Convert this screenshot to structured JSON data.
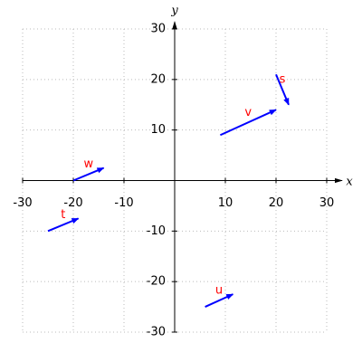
{
  "chart_data": {
    "type": "vector",
    "x_label": "x",
    "y_label": "y",
    "xlim": [
      -30,
      30
    ],
    "ylim": [
      -30,
      30
    ],
    "xticks": [
      -30,
      -20,
      -10,
      10,
      20,
      30
    ],
    "yticks": [
      -30,
      -20,
      -10,
      10,
      20,
      30
    ],
    "grid": true,
    "color": "#0000ff",
    "label_color": "#ff0000",
    "vectors": [
      {
        "name": "s",
        "x": [
          20,
          22.5
        ],
        "y": [
          21,
          15
        ]
      },
      {
        "name": "v",
        "x": [
          9,
          20
        ],
        "y": [
          9,
          14
        ]
      },
      {
        "name": "w",
        "x": [
          -20,
          -14
        ],
        "y": [
          0,
          2.5
        ]
      },
      {
        "name": "t",
        "x": [
          -25,
          -19
        ],
        "y": [
          -10,
          -7.5
        ]
      },
      {
        "name": "u",
        "x": [
          6,
          11.5
        ],
        "y": [
          -25,
          -22.5
        ]
      }
    ]
  }
}
